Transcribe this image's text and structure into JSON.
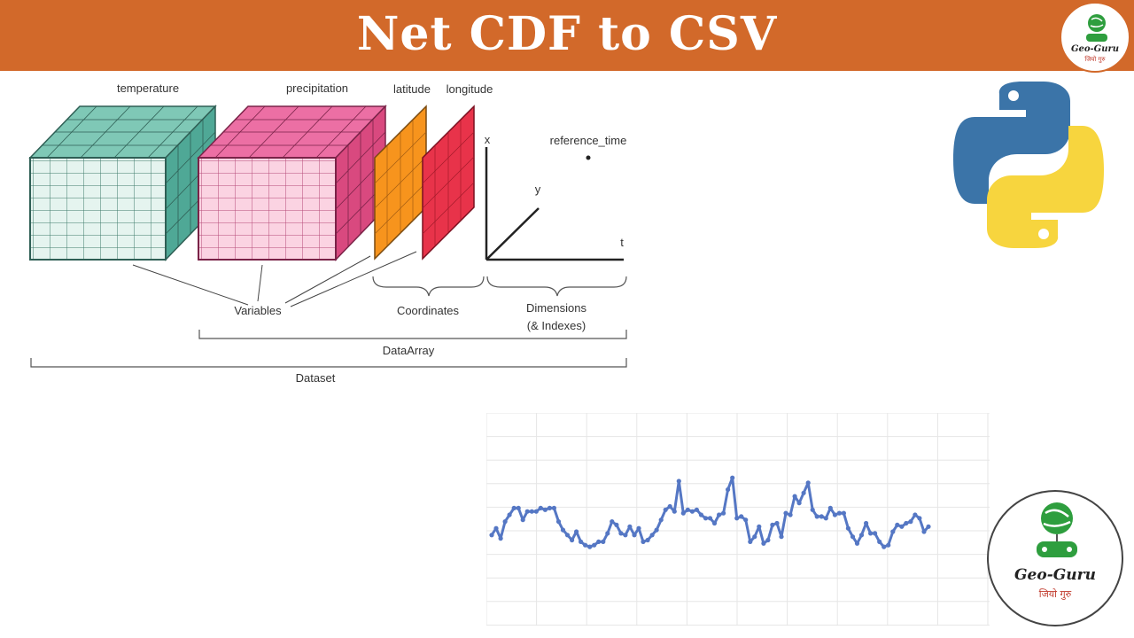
{
  "banner": {
    "title": "Net CDF to CSV",
    "color": "#d2692a"
  },
  "logo": {
    "name": "Geo-Guru",
    "tagline": "जियो गुरु",
    "icon": "globe-gamepad-icon"
  },
  "diagram": {
    "variables": [
      "temperature",
      "precipitation"
    ],
    "coordinates": [
      "latitude",
      "longitude"
    ],
    "axis_labels": {
      "x": "x",
      "y": "y",
      "t": "t",
      "reference_time": "reference_time"
    },
    "group_labels": {
      "variables": "Variables",
      "coordinates": "Coordinates",
      "dimensions": "Dimensions",
      "indexes": "(& Indexes)",
      "dataarray": "DataArray",
      "dataset": "Dataset"
    },
    "colors": {
      "temperature": "#7fc8b6",
      "precipitation": "#f4a3c4",
      "latitude": "#f7941d",
      "longitude": "#e8334a"
    }
  },
  "python_logo": {
    "icon": "python-icon",
    "colors": [
      "#3b74a8",
      "#f7d53e"
    ]
  },
  "chart_data": {
    "type": "line",
    "color": "#5577c4",
    "grid": true,
    "ylim": [
      0,
      100
    ],
    "values": [
      38,
      42,
      36,
      46,
      50,
      54,
      54,
      47,
      52,
      52,
      52,
      54,
      53,
      54,
      54,
      46,
      41,
      38,
      35,
      40,
      34,
      32,
      31,
      32,
      34,
      34,
      39,
      46,
      44,
      39,
      38,
      43,
      38,
      42,
      34,
      35,
      38,
      41,
      47,
      53,
      55,
      52,
      70,
      51,
      53,
      52,
      53,
      50,
      48,
      48,
      45,
      50,
      51,
      65,
      72,
      48,
      49,
      47,
      34,
      37,
      43,
      33,
      35,
      44,
      45,
      37,
      51,
      50,
      61,
      57,
      63,
      69,
      53,
      49,
      49,
      48,
      54,
      50,
      51,
      51,
      42,
      37,
      33,
      38,
      45,
      39,
      39,
      34,
      31,
      32,
      40,
      44,
      43,
      45,
      46,
      50,
      48,
      40,
      43
    ]
  }
}
